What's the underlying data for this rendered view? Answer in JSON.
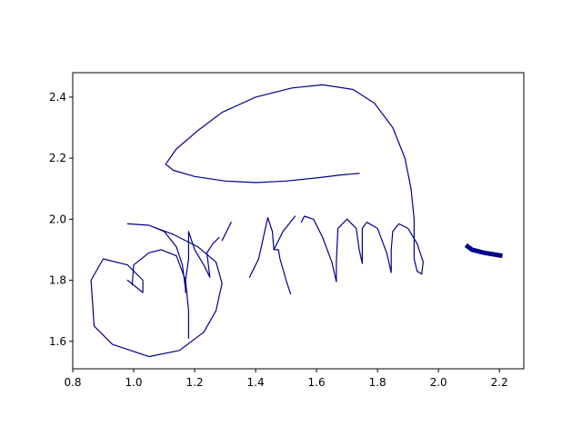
{
  "chart_data": {
    "type": "line",
    "title": "",
    "xlabel": "",
    "ylabel": "",
    "xlim": [
      0.8,
      2.28
    ],
    "ylim": [
      1.51,
      2.48
    ],
    "grid": false,
    "legend": "none",
    "xticks": [
      0.8,
      1.0,
      1.2,
      1.4,
      1.6,
      1.8,
      2.0,
      2.2
    ],
    "xtick_labels": [
      "0.8",
      "1.0",
      "1.2",
      "1.4",
      "1.6",
      "1.8",
      "2.0",
      "2.2"
    ],
    "yticks": [
      1.6,
      1.8,
      2.0,
      2.2,
      2.4
    ],
    "ytick_labels": [
      "1.6",
      "1.8",
      "2.0",
      "2.2",
      "2.4"
    ],
    "line_color": "#00008b",
    "series": [
      {
        "stroke_weight": "thin",
        "points": [
          [
            0.98,
            1.8
          ],
          [
            1.03,
            1.76
          ],
          [
            1.03,
            1.8
          ],
          [
            0.98,
            1.85
          ],
          [
            0.9,
            1.87
          ],
          [
            0.86,
            1.8
          ],
          [
            0.87,
            1.65
          ],
          [
            0.93,
            1.59
          ],
          [
            1.05,
            1.55
          ],
          [
            1.15,
            1.57
          ],
          [
            1.23,
            1.63
          ],
          [
            1.27,
            1.7
          ],
          [
            1.29,
            1.79
          ],
          [
            1.27,
            1.86
          ],
          [
            1.21,
            1.91
          ],
          [
            1.13,
            1.95
          ],
          [
            1.05,
            1.98
          ],
          [
            0.98,
            1.985
          ],
          [
            1.05,
            1.98
          ],
          [
            1.1,
            1.96
          ],
          [
            1.14,
            1.91
          ],
          [
            1.16,
            1.85
          ],
          [
            1.17,
            1.77
          ],
          [
            1.17,
            1.76
          ],
          [
            1.17,
            1.8
          ],
          [
            1.18,
            1.87
          ],
          [
            1.18,
            1.96
          ],
          [
            1.2,
            1.9
          ],
          [
            1.23,
            1.85
          ],
          [
            1.25,
            1.81
          ],
          [
            1.24,
            1.89
          ],
          [
            1.26,
            1.92
          ],
          [
            1.28,
            1.94
          ]
        ]
      },
      {
        "stroke_weight": "thin",
        "points": [
          [
            0.995,
            1.785
          ],
          [
            1.0,
            1.85
          ],
          [
            1.05,
            1.89
          ],
          [
            1.09,
            1.9
          ],
          [
            1.14,
            1.88
          ],
          [
            1.17,
            1.8
          ],
          [
            1.18,
            1.7
          ],
          [
            1.18,
            1.61
          ]
        ]
      },
      {
        "stroke_weight": "thin",
        "points": [
          [
            1.29,
            1.93
          ],
          [
            1.31,
            1.97
          ],
          [
            1.32,
            1.99
          ]
        ]
      },
      {
        "stroke_weight": "thin",
        "points": [
          [
            1.38,
            1.81
          ],
          [
            1.41,
            1.87
          ],
          [
            1.43,
            1.96
          ],
          [
            1.44,
            2.005
          ],
          [
            1.455,
            1.96
          ],
          [
            1.46,
            1.9
          ],
          [
            1.475,
            1.9
          ],
          [
            1.48,
            1.87
          ],
          [
            1.5,
            1.8
          ],
          [
            1.515,
            1.755
          ]
        ]
      },
      {
        "stroke_weight": "thin",
        "points": [
          [
            1.46,
            1.9
          ],
          [
            1.49,
            1.96
          ],
          [
            1.53,
            2.01
          ]
        ]
      },
      {
        "stroke_weight": "thin",
        "points": [
          [
            1.55,
            1.99
          ],
          [
            1.56,
            2.01
          ],
          [
            1.59,
            2.0
          ],
          [
            1.62,
            1.94
          ],
          [
            1.65,
            1.86
          ],
          [
            1.665,
            1.795
          ],
          [
            1.665,
            1.86
          ],
          [
            1.67,
            1.97
          ],
          [
            1.7,
            2.0
          ],
          [
            1.73,
            1.97
          ],
          [
            1.74,
            1.9
          ],
          [
            1.75,
            1.855
          ],
          [
            1.75,
            1.9
          ],
          [
            1.75,
            1.97
          ],
          [
            1.765,
            1.99
          ],
          [
            1.8,
            1.97
          ],
          [
            1.83,
            1.89
          ],
          [
            1.845,
            1.825
          ],
          [
            1.845,
            1.9
          ],
          [
            1.85,
            1.96
          ],
          [
            1.87,
            1.985
          ],
          [
            1.9,
            1.97
          ],
          [
            1.93,
            1.92
          ],
          [
            1.95,
            1.86
          ],
          [
            1.945,
            1.82
          ],
          [
            1.93,
            1.83
          ],
          [
            1.92,
            1.87
          ],
          [
            1.92,
            1.92
          ],
          [
            1.92,
            2.0
          ],
          [
            1.91,
            2.1
          ],
          [
            1.89,
            2.2
          ],
          [
            1.85,
            2.3
          ],
          [
            1.79,
            2.38
          ],
          [
            1.72,
            2.425
          ],
          [
            1.62,
            2.44
          ],
          [
            1.52,
            2.43
          ],
          [
            1.4,
            2.4
          ],
          [
            1.29,
            2.35
          ],
          [
            1.21,
            2.29
          ],
          [
            1.14,
            2.23
          ],
          [
            1.105,
            2.18
          ],
          [
            1.13,
            2.16
          ],
          [
            1.2,
            2.14
          ],
          [
            1.3,
            2.125
          ],
          [
            1.4,
            2.12
          ],
          [
            1.5,
            2.125
          ],
          [
            1.6,
            2.135
          ],
          [
            1.68,
            2.145
          ],
          [
            1.74,
            2.15
          ]
        ]
      },
      {
        "stroke_weight": "thick",
        "points": [
          [
            2.09,
            1.915
          ],
          [
            2.11,
            1.9
          ],
          [
            2.15,
            1.89
          ],
          [
            2.21,
            1.88
          ]
        ]
      }
    ]
  }
}
